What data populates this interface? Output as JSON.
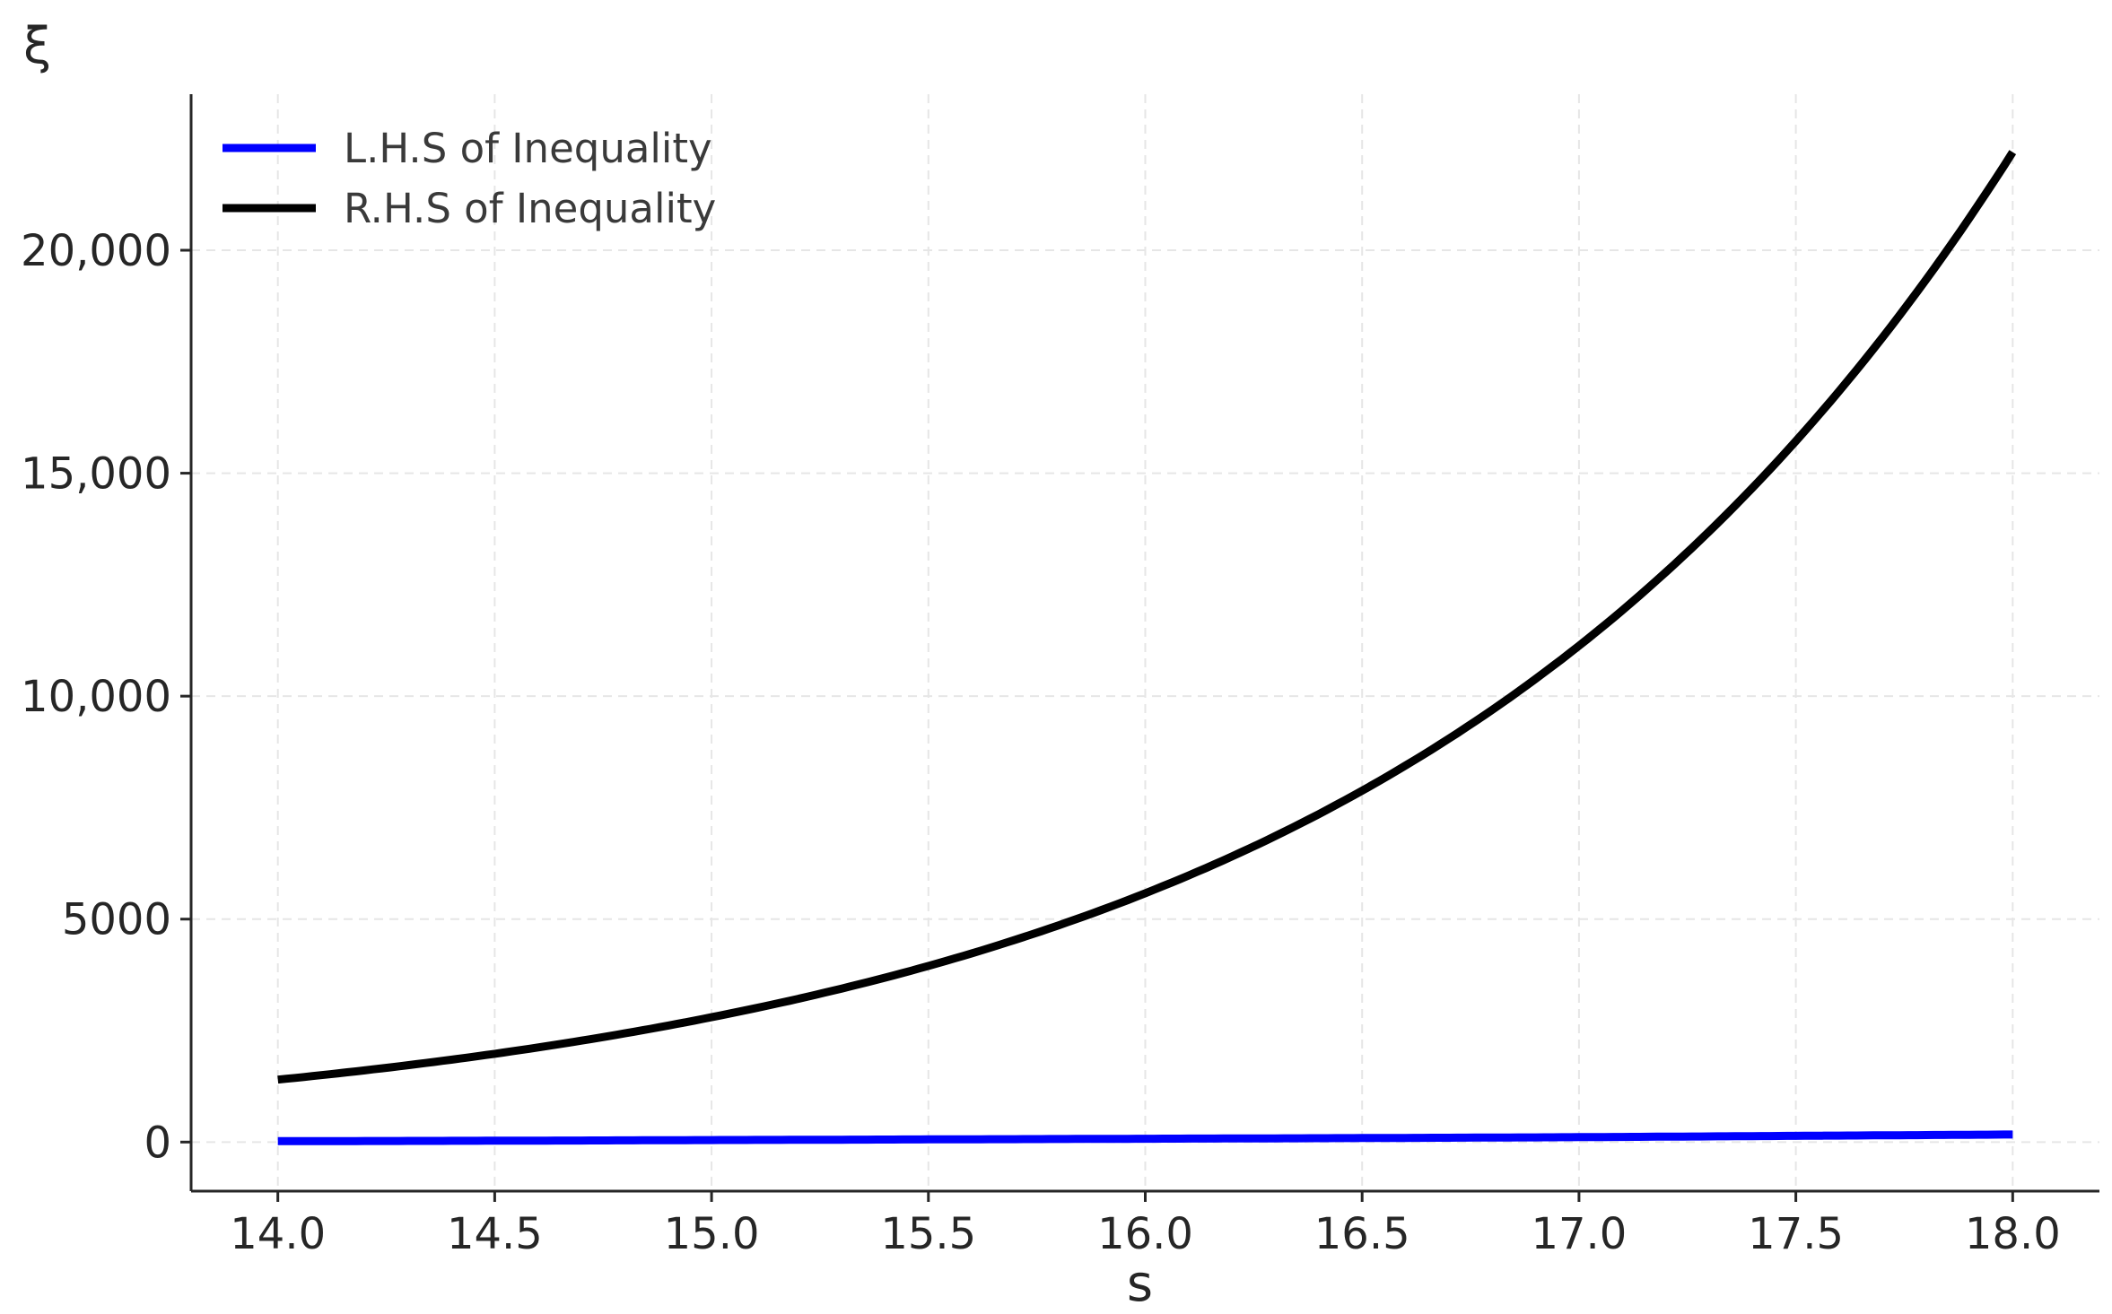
{
  "chart_data": {
    "type": "line",
    "title": "",
    "xlabel": "s",
    "ylabel": "ξ",
    "xlim": [
      13.8,
      18.2
    ],
    "ylim": [
      -1100,
      23500
    ],
    "grid": true,
    "legend_position": "top-left",
    "x_ticks": [
      14.0,
      14.5,
      15.0,
      15.5,
      16.0,
      16.5,
      17.0,
      17.5,
      18.0
    ],
    "x_tick_labels": [
      "14.0",
      "14.5",
      "15.0",
      "15.5",
      "16.0",
      "16.5",
      "17.0",
      "17.5",
      "18.0"
    ],
    "y_ticks": [
      0,
      5000,
      10000,
      15000,
      20000
    ],
    "y_tick_labels": [
      "0",
      "5000",
      "10,000",
      "15,000",
      "20,000"
    ],
    "x": [
      14.0,
      14.5,
      15.0,
      15.5,
      16.0,
      16.5,
      17.0,
      17.5,
      18.0
    ],
    "series": [
      {
        "name": "L.H.S of Inequality",
        "color": "#0000ff",
        "values": [
          20,
          30,
          45,
          60,
          75,
          90,
          110,
          140,
          170
        ]
      },
      {
        "name": "R.H.S of Inequality",
        "color": "#000000",
        "values": [
          1400,
          1980,
          2800,
          3950,
          5580,
          7880,
          11130,
          15720,
          22200
        ]
      }
    ]
  }
}
